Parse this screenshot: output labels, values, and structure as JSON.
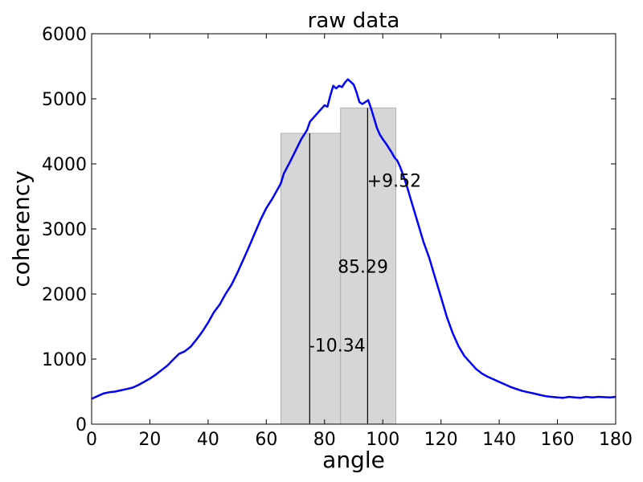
{
  "chart_data": {
    "type": "line",
    "title": "raw data",
    "xlabel": "angle",
    "ylabel": "coherency",
    "xlim": [
      0,
      180
    ],
    "ylim": [
      0,
      6000
    ],
    "xticks": [
      0,
      20,
      40,
      60,
      80,
      100,
      120,
      140,
      160,
      180
    ],
    "yticks": [
      0,
      1000,
      2000,
      3000,
      4000,
      5000,
      6000
    ],
    "series_color": "#0000ff",
    "series": [
      {
        "name": "coherency",
        "x": [
          0,
          2,
          4,
          6,
          8,
          10,
          12,
          14,
          16,
          18,
          20,
          22,
          24,
          26,
          28,
          30,
          32,
          34,
          36,
          38,
          40,
          42,
          44,
          46,
          48,
          50,
          52,
          54,
          56,
          58,
          60,
          62,
          64,
          65,
          66,
          68,
          70,
          72,
          74,
          75,
          76,
          78,
          80,
          81,
          82,
          83,
          84,
          85,
          86,
          87,
          88,
          89,
          90,
          91,
          92,
          93,
          94,
          95,
          96,
          97,
          98,
          99,
          100,
          101,
          102,
          103,
          104,
          105,
          106,
          108,
          110,
          112,
          114,
          116,
          118,
          120,
          122,
          124,
          126,
          128,
          130,
          132,
          134,
          136,
          138,
          140,
          142,
          144,
          146,
          148,
          150,
          152,
          154,
          156,
          158,
          160,
          162,
          164,
          166,
          168,
          170,
          172,
          174,
          176,
          178,
          180
        ],
        "y": [
          390,
          430,
          470,
          490,
          500,
          520,
          540,
          560,
          600,
          650,
          700,
          760,
          830,
          900,
          990,
          1080,
          1120,
          1190,
          1300,
          1420,
          1560,
          1720,
          1840,
          2000,
          2140,
          2320,
          2520,
          2720,
          2930,
          3140,
          3320,
          3460,
          3620,
          3700,
          3850,
          4020,
          4200,
          4380,
          4520,
          4650,
          4700,
          4800,
          4900,
          4880,
          5050,
          5200,
          5160,
          5200,
          5180,
          5250,
          5300,
          5260,
          5220,
          5100,
          4950,
          4920,
          4950,
          4980,
          4850,
          4700,
          4550,
          4450,
          4380,
          4320,
          4250,
          4180,
          4100,
          4050,
          3950,
          3700,
          3400,
          3100,
          2800,
          2550,
          2250,
          1950,
          1650,
          1400,
          1200,
          1050,
          950,
          850,
          780,
          730,
          690,
          650,
          610,
          570,
          540,
          510,
          490,
          470,
          450,
          430,
          420,
          410,
          405,
          420,
          410,
          405,
          420,
          410,
          420,
          415,
          410,
          420
        ]
      }
    ],
    "regions": [
      {
        "x_start": 65,
        "x_end": 85.5,
        "height": 4470
      },
      {
        "x_start": 85.5,
        "x_end": 104.5,
        "height": 4860
      }
    ],
    "region_color": "#d6d6d6",
    "vlines": [
      {
        "x": 74.9,
        "height": 4470
      },
      {
        "x": 94.8,
        "height": 4860
      }
    ],
    "annotations": [
      {
        "text": "+9.52",
        "x": 94.6,
        "y": 3650
      },
      {
        "text": "85.29",
        "x": 84.5,
        "y": 2330
      },
      {
        "text": "-10.34",
        "x": 74.5,
        "y": 1120
      }
    ]
  }
}
